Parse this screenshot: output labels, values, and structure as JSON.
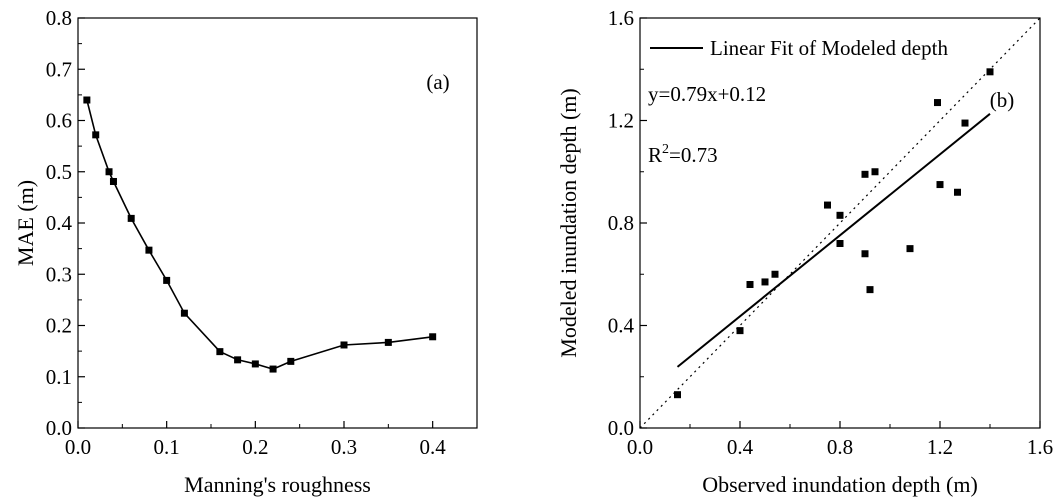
{
  "chart_data": [
    {
      "type": "line",
      "panel_label": "(a)",
      "xlabel": "Manning's roughness",
      "ylabel": "MAE (m)",
      "xlim": [
        0.0,
        0.45
      ],
      "ylim": [
        0.0,
        0.8
      ],
      "x_ticks": [
        0.0,
        0.1,
        0.2,
        0.3,
        0.4
      ],
      "x_tick_labels": [
        "0.0",
        "0.1",
        "0.2",
        "0.3",
        "0.4"
      ],
      "y_ticks": [
        0.0,
        0.1,
        0.2,
        0.3,
        0.4,
        0.5,
        0.6,
        0.7,
        0.8
      ],
      "y_tick_labels": [
        "0.0",
        "0.1",
        "0.2",
        "0.3",
        "0.4",
        "0.5",
        "0.6",
        "0.7",
        "0.8"
      ],
      "grid": false,
      "series": [
        {
          "x": [
            0.01,
            0.02,
            0.035,
            0.04,
            0.06,
            0.08,
            0.1,
            0.12,
            0.16,
            0.18,
            0.2,
            0.22,
            0.24,
            0.3,
            0.35,
            0.4
          ],
          "y": [
            0.64,
            0.572,
            0.5,
            0.481,
            0.409,
            0.347,
            0.288,
            0.224,
            0.149,
            0.133,
            0.125,
            0.115,
            0.13,
            0.162,
            0.167,
            0.178
          ],
          "color": "#000000",
          "marker": "square"
        }
      ]
    },
    {
      "type": "scatter",
      "panel_label": "(b)",
      "xlabel": "Observed inundation depth (m)",
      "ylabel": "Modeled inundation depth (m)",
      "xlim": [
        0.0,
        1.6
      ],
      "ylim": [
        0.0,
        1.6
      ],
      "x_ticks": [
        0.0,
        0.4,
        0.8,
        1.2,
        1.6
      ],
      "x_tick_labels": [
        "0.0",
        "0.4",
        "0.8",
        "1.2",
        "1.6"
      ],
      "y_ticks": [
        0.0,
        0.4,
        0.8,
        1.2,
        1.6
      ],
      "y_tick_labels": [
        "0.0",
        "0.4",
        "0.8",
        "1.2",
        "1.6"
      ],
      "grid": false,
      "legend": {
        "position": "top",
        "entries": [
          "Linear Fit of Modeled depth"
        ]
      },
      "equation": "y=0.79x+0.12",
      "r2_prefix": "R",
      "r2_sup": "2",
      "r2_value": "=0.73",
      "points": {
        "x": [
          0.15,
          0.4,
          0.44,
          0.5,
          0.54,
          0.75,
          0.8,
          0.8,
          0.9,
          0.9,
          0.92,
          0.94,
          1.08,
          1.19,
          1.2,
          1.27,
          1.3,
          1.4
        ],
        "y": [
          0.13,
          0.38,
          0.56,
          0.57,
          0.6,
          0.87,
          0.83,
          0.72,
          0.99,
          0.68,
          0.54,
          1.0,
          0.7,
          1.27,
          0.95,
          0.92,
          1.19,
          1.39
        ],
        "color": "#000000",
        "marker": "square"
      },
      "fit_line": {
        "slope": 0.79,
        "intercept": 0.12,
        "x_range": [
          0.15,
          1.4
        ],
        "color": "#000000",
        "style": "solid"
      },
      "reference_line": {
        "slope": 1.0,
        "intercept": 0.0,
        "x_range": [
          0.0,
          1.6
        ],
        "color": "#000000",
        "style": "dotted"
      }
    }
  ]
}
